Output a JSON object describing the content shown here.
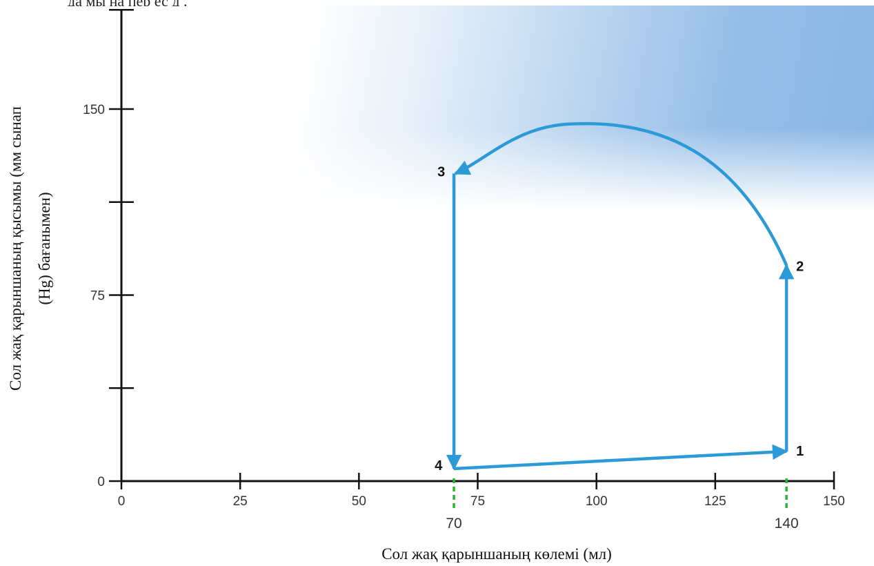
{
  "page": {
    "top_text_fragment": "да  мы на   пер  ес  д  ."
  },
  "chart_data": {
    "type": "line",
    "title": "",
    "xlabel": "Сол жақ қарыншаның көлемі (мл)",
    "ylabel_lines": [
      "Сол жақ қарыншаның қысымы (мм сынап",
      "(Hg) бағанымен)"
    ],
    "xlim": [
      0,
      150
    ],
    "ylim": [
      0,
      190
    ],
    "x_ticks": [
      0,
      25,
      50,
      75,
      100,
      125,
      150
    ],
    "y_ticks_labeled": [
      0,
      75,
      150
    ],
    "y_ticks_minor": [
      37.5,
      112.5
    ],
    "grid": false,
    "points": [
      {
        "label": "1",
        "x": 140,
        "y": 12
      },
      {
        "label": "2",
        "x": 140,
        "y": 87
      },
      {
        "label": "3",
        "x": 70,
        "y": 124
      },
      {
        "label": "4",
        "x": 70,
        "y": 5
      }
    ],
    "arc_peak": {
      "x": 95,
      "y": 144
    },
    "volume_markers": [
      {
        "x": 70,
        "label": "70"
      },
      {
        "x": 140,
        "label": "140"
      }
    ],
    "colors": {
      "loop": "#2b9ad6",
      "axis": "#111111",
      "markers": "#2fb135",
      "bg_accent": "#8ab6e6"
    }
  }
}
